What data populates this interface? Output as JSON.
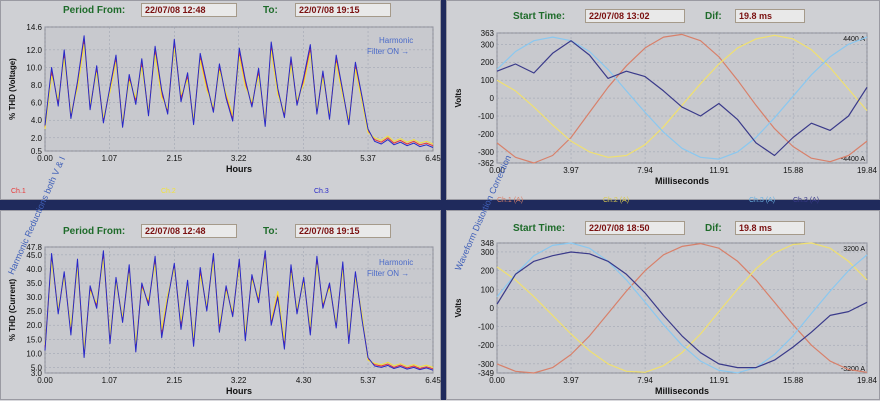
{
  "colors": {
    "ch1": "#e83838",
    "ch2": "#f2e23a",
    "ch3": "#2828c8",
    "ch1a": "#d8806a",
    "ch2a": "#f0e070",
    "ch3a": "#8ac8f0",
    "ch4a": "#3a3a8a",
    "grid": "#9aa0ae",
    "plot_bg": "#c8c9ce"
  },
  "vertical_labels": {
    "left": "Harmonic Reductions both V & I",
    "right": "Waveform Distortion Correction"
  },
  "panels": {
    "thd_voltage": {
      "period_from_label": "Period From:",
      "period_from": "22/07/08 12:48",
      "to_label": "To:",
      "to": "22/07/08 19:15",
      "legend": [
        "Ch.1",
        "Ch.2",
        "Ch.3"
      ],
      "annotation_line1": "Harmonic",
      "annotation_line2": "Filter ON →"
    },
    "thd_current": {
      "period_from_label": "Period From:",
      "period_from": "22/07/08 12:48",
      "to_label": "To:",
      "to": "22/07/08 19:15",
      "annotation_line1": "Harmonic",
      "annotation_line2": "Filter ON →"
    },
    "wave_top": {
      "start_label": "Start Time:",
      "start": "22/07/08 13:02",
      "dif_label": "Dif:",
      "dif": "19.8 ms",
      "legend": [
        "Ch.1 (A)",
        "Ch.2 (A)",
        "Ch.3 (A)",
        "Ch.3 (A)"
      ]
    },
    "wave_bottom": {
      "start_label": "Start Time:",
      "start": "22/07/08 18:50",
      "dif_label": "Dif:",
      "dif": "19.8 ms"
    }
  },
  "chart_data": [
    {
      "type": "line",
      "ylabel": "% THD (Voltage)",
      "xlabel": "Hours",
      "ylim": [
        0.5,
        14.6
      ],
      "xlim": [
        0.0,
        6.45
      ],
      "yticks": [
        "14.6",
        "12.0",
        "10.0",
        "8.0",
        "6.0",
        "4.0",
        "2.0",
        "0.5"
      ],
      "xticks": [
        "0.00",
        "1.07",
        "2.15",
        "3.22",
        "4.30",
        "5.37",
        "6.45"
      ],
      "x": [
        0.0,
        0.11,
        0.22,
        0.32,
        0.43,
        0.54,
        0.65,
        0.75,
        0.86,
        0.97,
        1.08,
        1.18,
        1.29,
        1.4,
        1.51,
        1.61,
        1.72,
        1.83,
        1.94,
        2.04,
        2.15,
        2.26,
        2.37,
        2.47,
        2.58,
        2.69,
        2.8,
        2.9,
        3.01,
        3.12,
        3.23,
        3.33,
        3.44,
        3.55,
        3.66,
        3.76,
        3.87,
        3.98,
        4.09,
        4.19,
        4.3,
        4.41,
        4.52,
        4.62,
        4.73,
        4.84,
        4.95,
        5.05,
        5.16,
        5.27,
        5.37,
        5.48,
        5.59,
        5.7,
        5.8,
        5.91,
        6.02,
        6.13,
        6.23,
        6.34,
        6.45
      ],
      "series": [
        {
          "name": "Ch.1",
          "values": [
            3.2,
            9.5,
            6.0,
            11.5,
            4.5,
            8.0,
            13.2,
            5.5,
            9.8,
            4.0,
            7.5,
            11.0,
            3.5,
            8.8,
            6.2,
            10.5,
            4.8,
            12.0,
            7.0,
            5.0,
            12.8,
            6.5,
            9.0,
            3.8,
            11.2,
            7.8,
            5.2,
            10.0,
            6.8,
            4.2,
            11.8,
            8.2,
            5.8,
            9.5,
            3.6,
            12.5,
            7.2,
            4.6,
            10.8,
            6.0,
            8.5,
            12.2,
            5.0,
            9.2,
            4.4,
            11.0,
            7.0,
            3.8,
            10.2,
            6.4,
            2.8,
            1.8,
            1.5,
            2.0,
            1.4,
            1.7,
            1.3,
            1.6,
            1.2,
            1.4,
            1.1
          ]
        },
        {
          "name": "Ch.2",
          "values": [
            3.0,
            9.0,
            6.4,
            11.0,
            4.8,
            7.6,
            12.6,
            5.8,
            9.4,
            4.3,
            7.2,
            10.6,
            3.8,
            8.4,
            6.6,
            10.0,
            5.0,
            11.4,
            6.6,
            5.3,
            12.2,
            6.9,
            8.6,
            4.1,
            10.8,
            7.4,
            5.5,
            9.6,
            7.1,
            4.5,
            11.2,
            7.8,
            6.1,
            9.0,
            3.9,
            11.9,
            6.9,
            4.9,
            10.2,
            6.3,
            8.1,
            11.6,
            5.3,
            8.8,
            4.7,
            10.5,
            6.7,
            4.1,
            9.8,
            6.1,
            2.6,
            2.0,
            1.7,
            2.2,
            1.6,
            1.9,
            1.5,
            1.8,
            1.4,
            1.6,
            1.3
          ]
        },
        {
          "name": "Ch.3",
          "values": [
            3.4,
            10.0,
            5.6,
            12.0,
            4.2,
            8.4,
            13.6,
            5.2,
            10.2,
            3.7,
            7.8,
            11.4,
            3.2,
            9.2,
            5.8,
            11.0,
            4.5,
            12.4,
            7.4,
            4.7,
            13.2,
            6.1,
            9.4,
            3.5,
            11.6,
            8.2,
            4.9,
            10.4,
            6.5,
            3.9,
            12.2,
            8.6,
            5.5,
            9.9,
            3.3,
            12.9,
            7.6,
            4.3,
            11.2,
            5.7,
            8.9,
            12.6,
            4.7,
            9.6,
            4.1,
            11.4,
            7.3,
            3.5,
            10.6,
            6.7,
            3.0,
            1.6,
            1.3,
            1.8,
            1.2,
            1.5,
            1.1,
            1.4,
            1.0,
            1.2,
            0.9
          ]
        }
      ]
    },
    {
      "type": "line",
      "ylabel": "% THD (Current)",
      "xlabel": "Hours",
      "ylim": [
        3.0,
        47.8
      ],
      "xlim": [
        0.0,
        6.45
      ],
      "yticks": [
        "47.8",
        "45.0",
        "40.0",
        "35.0",
        "30.0",
        "25.0",
        "20.0",
        "15.0",
        "10.0",
        "5.0",
        "3.0"
      ],
      "xticks": [
        "0.00",
        "1.07",
        "2.15",
        "3.22",
        "4.30",
        "5.37",
        "6.45"
      ],
      "x": [
        0.0,
        0.11,
        0.22,
        0.32,
        0.43,
        0.54,
        0.65,
        0.75,
        0.86,
        0.97,
        1.08,
        1.18,
        1.29,
        1.4,
        1.51,
        1.61,
        1.72,
        1.83,
        1.94,
        2.04,
        2.15,
        2.26,
        2.37,
        2.47,
        2.58,
        2.69,
        2.8,
        2.9,
        3.01,
        3.12,
        3.23,
        3.33,
        3.44,
        3.55,
        3.66,
        3.76,
        3.87,
        3.98,
        4.09,
        4.19,
        4.3,
        4.41,
        4.52,
        4.62,
        4.73,
        4.84,
        4.95,
        5.05,
        5.16,
        5.27,
        5.37,
        5.48,
        5.59,
        5.7,
        5.8,
        5.91,
        6.02,
        6.13,
        6.23,
        6.34,
        6.45
      ],
      "series": [
        {
          "name": "Ch.1",
          "values": [
            12.0,
            44.0,
            25.0,
            38.0,
            18.0,
            42.0,
            10.0,
            33.0,
            27.0,
            45.0,
            15.0,
            36.0,
            22.0,
            40.0,
            12.0,
            34.0,
            28.0,
            43.0,
            17.0,
            30.0,
            41.0,
            20.0,
            35.0,
            14.0,
            39.0,
            26.0,
            44.0,
            19.0,
            33.0,
            24.0,
            42.0,
            16.0,
            37.0,
            29.0,
            45.0,
            21.0,
            31.0,
            13.0,
            40.0,
            25.0,
            36.0,
            18.0,
            43.0,
            27.0,
            34.0,
            20.0,
            41.0,
            15.0,
            38.0,
            23.0,
            8.0,
            6.0,
            5.5,
            6.2,
            5.0,
            5.8,
            4.8,
            5.5,
            4.6,
            5.2,
            4.5
          ]
        },
        {
          "name": "Ch.2",
          "values": [
            13.0,
            42.5,
            26.0,
            37.0,
            19.5,
            40.5,
            11.5,
            32.0,
            28.0,
            43.5,
            16.5,
            35.0,
            23.0,
            38.5,
            13.5,
            33.0,
            29.0,
            41.5,
            18.5,
            31.0,
            40.0,
            21.5,
            34.0,
            15.5,
            37.5,
            27.0,
            42.5,
            20.5,
            32.0,
            25.0,
            40.5,
            17.5,
            36.0,
            30.0,
            43.5,
            22.0,
            32.0,
            14.5,
            38.5,
            26.0,
            35.0,
            19.5,
            41.5,
            28.0,
            33.0,
            21.0,
            39.5,
            16.5,
            37.0,
            24.0,
            7.5,
            6.5,
            6.0,
            6.8,
            5.6,
            6.3,
            5.4,
            6.0,
            5.2,
            5.8,
            5.0
          ]
        },
        {
          "name": "Ch.3",
          "values": [
            11.0,
            45.5,
            24.0,
            39.0,
            16.5,
            43.5,
            8.5,
            34.0,
            26.0,
            46.5,
            13.5,
            37.0,
            21.0,
            41.5,
            10.5,
            35.0,
            27.0,
            44.5,
            15.5,
            29.0,
            42.0,
            18.5,
            36.0,
            12.5,
            40.5,
            25.0,
            45.5,
            17.5,
            34.0,
            23.0,
            43.5,
            14.5,
            38.0,
            28.0,
            46.5,
            20.0,
            30.0,
            11.5,
            41.5,
            24.0,
            37.0,
            16.5,
            44.5,
            26.0,
            35.0,
            19.0,
            42.5,
            13.5,
            39.0,
            22.0,
            8.5,
            5.5,
            5.0,
            5.7,
            4.6,
            5.3,
            4.4,
            5.0,
            4.2,
            4.8,
            4.0
          ]
        }
      ]
    },
    {
      "type": "line",
      "ylabel": "Volts",
      "xlabel": "Milliseconds",
      "ylim": [
        -362,
        363
      ],
      "xlim": [
        0.0,
        19.84
      ],
      "yticks": [
        "363",
        "300",
        "200",
        "100",
        "0",
        "-100",
        "-200",
        "-300",
        "-362"
      ],
      "xticks": [
        "0.00",
        "3.97",
        "7.94",
        "11.91",
        "15.88",
        "19.84"
      ],
      "right_ticks": [
        "4400 A",
        "-4400 A"
      ],
      "x": [
        0.0,
        0.99,
        1.98,
        2.98,
        3.97,
        4.96,
        5.95,
        6.94,
        7.94,
        8.93,
        9.92,
        10.91,
        11.9,
        12.9,
        13.89,
        14.88,
        15.87,
        16.86,
        17.86,
        18.85,
        19.84
      ],
      "series": [
        {
          "name": "Ch.1",
          "values": [
            -250,
            -330,
            -362,
            -320,
            -220,
            -80,
            60,
            180,
            280,
            340,
            355,
            320,
            230,
            100,
            -40,
            -170,
            -270,
            -335,
            -355,
            -320,
            -240
          ]
        },
        {
          "name": "Ch.2",
          "values": [
            100,
            40,
            -50,
            -150,
            -240,
            -300,
            -330,
            -320,
            -260,
            -160,
            -40,
            80,
            190,
            280,
            330,
            350,
            330,
            270,
            170,
            50,
            -70
          ]
        },
        {
          "name": "Ch.3",
          "values": [
            160,
            260,
            320,
            340,
            320,
            260,
            160,
            40,
            -80,
            -190,
            -280,
            -330,
            -340,
            -300,
            -220,
            -110,
            10,
            130,
            230,
            300,
            340
          ]
        },
        {
          "name": "Ch.3 (A)",
          "values": [
            150,
            190,
            140,
            250,
            320,
            240,
            110,
            150,
            120,
            40,
            -50,
            -100,
            -30,
            -120,
            -250,
            -320,
            -220,
            -140,
            -180,
            -100,
            60
          ]
        }
      ]
    },
    {
      "type": "line",
      "ylabel": "Volts",
      "xlabel": "Milliseconds",
      "ylim": [
        -349,
        348
      ],
      "xlim": [
        0.0,
        19.84
      ],
      "yticks": [
        "348",
        "300",
        "200",
        "100",
        "0",
        "-100",
        "-200",
        "-300",
        "-349"
      ],
      "xticks": [
        "0.00",
        "3.97",
        "7.94",
        "11.91",
        "15.88",
        "19.84"
      ],
      "right_ticks": [
        "3200 A",
        "-3200 A"
      ],
      "x": [
        0.0,
        0.99,
        1.98,
        2.98,
        3.97,
        4.96,
        5.95,
        6.94,
        7.94,
        8.93,
        9.92,
        10.91,
        11.9,
        12.9,
        13.89,
        14.88,
        15.87,
        16.86,
        17.86,
        18.85,
        19.84
      ],
      "series": [
        {
          "name": "Ch.1",
          "values": [
            -300,
            -340,
            -349,
            -320,
            -250,
            -150,
            -30,
            90,
            200,
            285,
            330,
            345,
            320,
            250,
            150,
            30,
            -90,
            -200,
            -285,
            -330,
            -345
          ]
        },
        {
          "name": "Ch.2",
          "values": [
            220,
            150,
            60,
            -40,
            -140,
            -230,
            -300,
            -340,
            -345,
            -310,
            -240,
            -140,
            -20,
            100,
            210,
            295,
            340,
            348,
            320,
            250,
            150
          ]
        },
        {
          "name": "Ch.3",
          "values": [
            60,
            180,
            280,
            335,
            348,
            320,
            250,
            150,
            30,
            -90,
            -200,
            -285,
            -335,
            -348,
            -320,
            -250,
            -150,
            -30,
            90,
            200,
            285
          ]
        },
        {
          "name": "Ch.3 (A)",
          "values": [
            20,
            180,
            250,
            280,
            300,
            290,
            250,
            180,
            80,
            -40,
            -150,
            -240,
            -300,
            -320,
            -320,
            -280,
            -210,
            -130,
            -40,
            -20,
            30
          ]
        }
      ]
    }
  ]
}
